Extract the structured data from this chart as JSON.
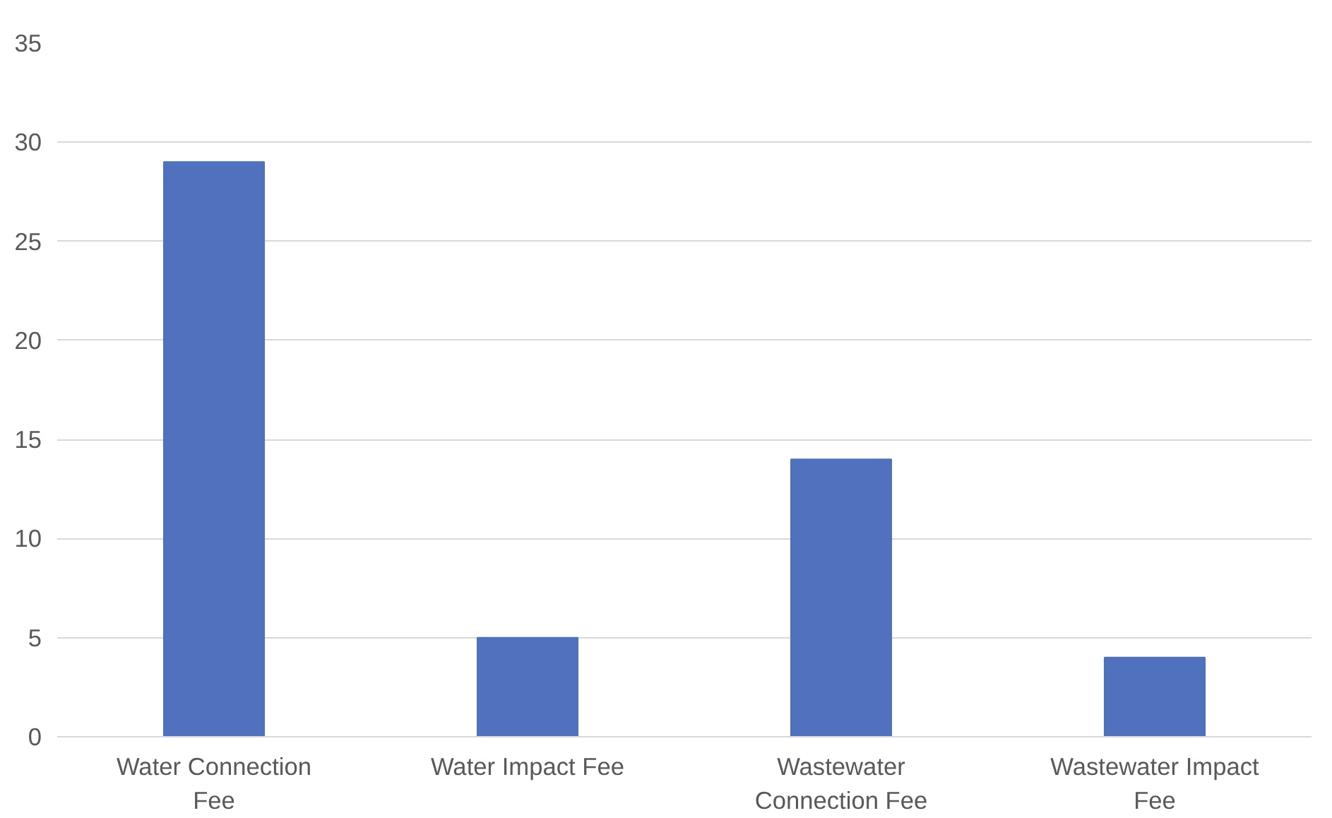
{
  "chart_data": {
    "type": "bar",
    "categories": [
      "Water Connection Fee",
      "Water Impact Fee",
      "Wastewater Connection Fee",
      "Wastewater Impact Fee"
    ],
    "values": [
      29,
      5,
      14,
      4
    ],
    "color": "#4f71be",
    "ylim": [
      0,
      35
    ],
    "yticks": [
      0,
      5,
      10,
      15,
      20,
      25,
      30,
      35
    ],
    "grid": "y"
  }
}
